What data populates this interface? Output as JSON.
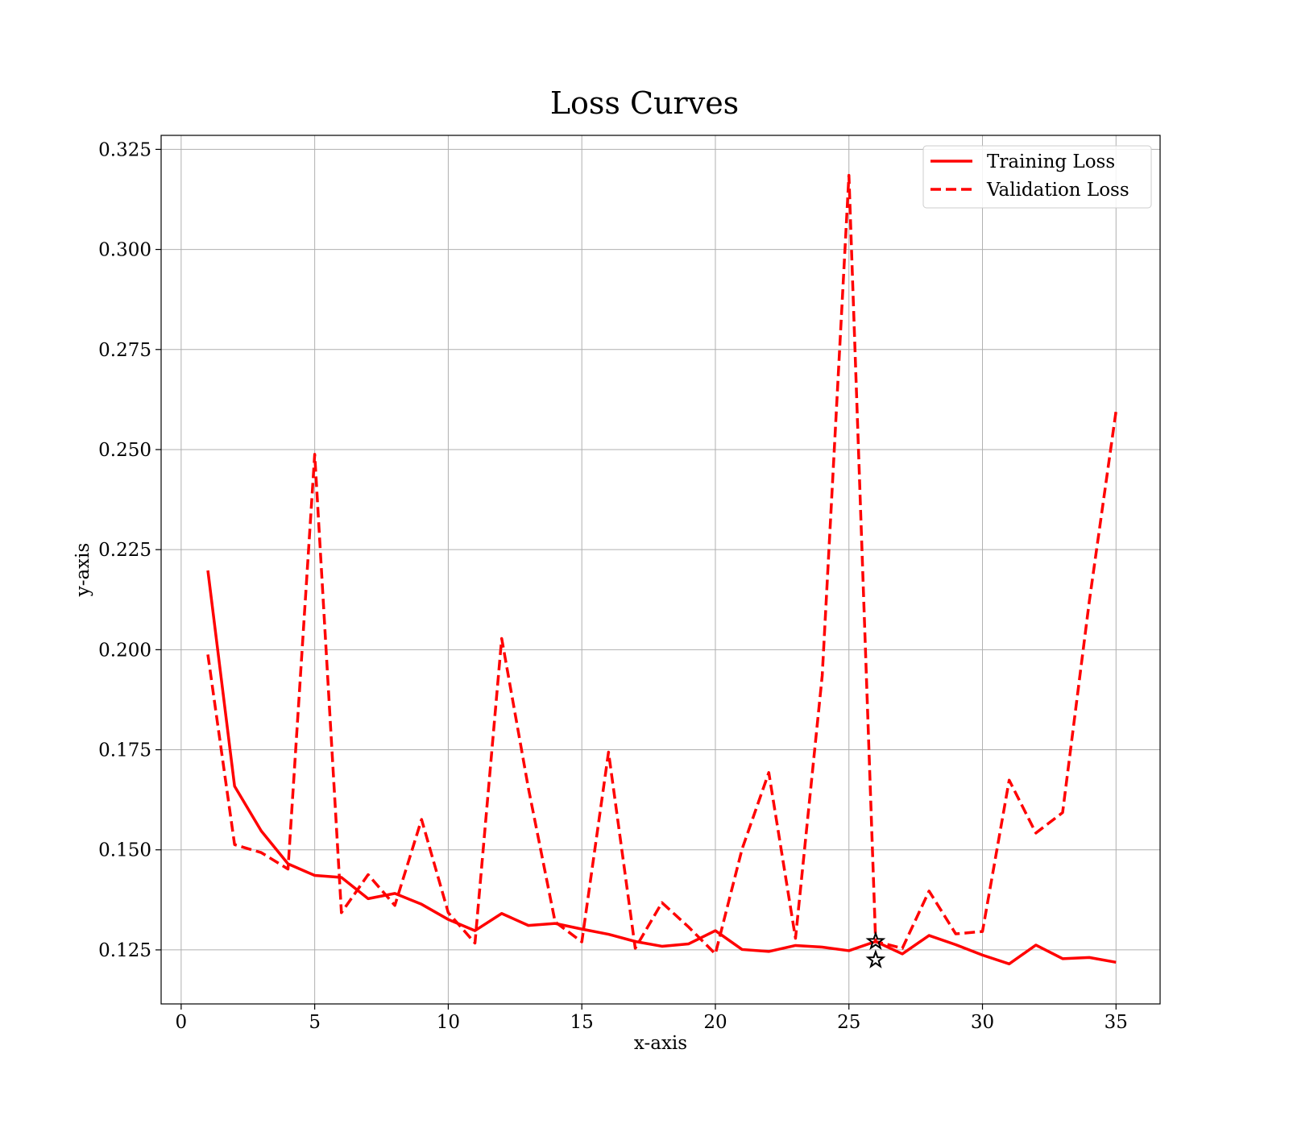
{
  "chart_data": {
    "type": "line",
    "title": "Loss Curves",
    "xlabel": "x-axis",
    "ylabel": "y-axis",
    "xlim": [
      -0.75,
      36.65
    ],
    "ylim": [
      0.1115,
      0.3285
    ],
    "xticks": [
      0,
      5,
      10,
      15,
      20,
      25,
      30,
      35
    ],
    "xtick_labels": [
      "0",
      "5",
      "10",
      "15",
      "20",
      "25",
      "30",
      "35"
    ],
    "yticks": [
      0.125,
      0.15,
      0.175,
      0.2,
      0.225,
      0.25,
      0.275,
      0.3,
      0.325
    ],
    "ytick_labels": [
      "0.125",
      "0.150",
      "0.175",
      "0.200",
      "0.225",
      "0.250",
      "0.275",
      "0.300",
      "0.325"
    ],
    "grid": true,
    "legend_position": "top-right",
    "x": [
      1,
      2,
      3,
      4,
      5,
      6,
      7,
      8,
      9,
      10,
      11,
      12,
      13,
      14,
      15,
      16,
      17,
      18,
      19,
      20,
      21,
      22,
      23,
      24,
      25,
      26,
      27,
      28,
      29,
      30,
      31,
      32,
      33,
      34,
      35
    ],
    "series": [
      {
        "name": "Training Loss",
        "style": "solid",
        "color": "#ff0000",
        "values": [
          0.2198,
          0.1659,
          0.1547,
          0.1465,
          0.1436,
          0.1431,
          0.1378,
          0.1391,
          0.1364,
          0.1326,
          0.1298,
          0.1341,
          0.1311,
          0.1316,
          0.1302,
          0.1289,
          0.1271,
          0.1259,
          0.1265,
          0.1298,
          0.1251,
          0.1246,
          0.1261,
          0.1257,
          0.1248,
          0.1271,
          0.124,
          0.1286,
          0.1263,
          0.1237,
          0.1215,
          0.1262,
          0.1228,
          0.1231,
          0.1219
        ]
      },
      {
        "name": "Validation Loss",
        "style": "dashed",
        "color": "#ff0000",
        "values": [
          0.1988,
          0.1513,
          0.1493,
          0.1452,
          0.2488,
          0.1343,
          0.1438,
          0.1361,
          0.1576,
          0.1343,
          0.1267,
          0.2028,
          0.1654,
          0.132,
          0.127,
          0.1744,
          0.1254,
          0.1368,
          0.1307,
          0.124,
          0.1502,
          0.1693,
          0.1279,
          0.1935,
          0.3185,
          0.1271,
          0.1254,
          0.1397,
          0.129,
          0.1296,
          0.1674,
          0.1542,
          0.1593,
          0.2121,
          0.2596
        ]
      }
    ],
    "markers": [
      {
        "x": 26,
        "y": 0.1271,
        "shape": "star",
        "color": "#000000"
      },
      {
        "x": 26,
        "y": 0.1225,
        "shape": "star",
        "color": "#000000"
      }
    ]
  }
}
